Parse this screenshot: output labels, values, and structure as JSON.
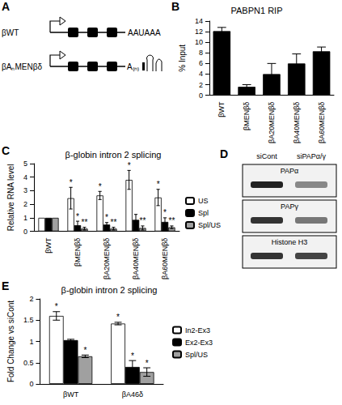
{
  "panel_labels": [
    "A",
    "B",
    "C",
    "D",
    "E"
  ],
  "diagram": {
    "constructs": [
      {
        "label": "βWT",
        "tail": "AAUAAA"
      },
      {
        "label": "βAₙMENβδ",
        "tail": "A₍ₙ₎"
      }
    ]
  },
  "blot": {
    "lanes": [
      "siCont",
      "siPAPα/γ"
    ],
    "rows": [
      "PAPα",
      "PAPγ",
      "Histone H3"
    ]
  },
  "chart_data": [
    {
      "type": "bar",
      "title": "PABPN1 RIP",
      "y_label": "% Input",
      "categories": [
        "βWT",
        "βMENβδ",
        "βA20MENβδ",
        "βA40MENβδ",
        "βA60MENβδ"
      ],
      "values": [
        12.1,
        1.6,
        4.0,
        6.0,
        8.3
      ],
      "errors": [
        0.7,
        0.4,
        2.0,
        1.8,
        0.8
      ],
      "color": "#000000",
      "ylim": [
        0,
        14
      ],
      "yticks": [
        0,
        2,
        4,
        6,
        8,
        10,
        12,
        14
      ],
      "grid": false
    },
    {
      "type": "bar",
      "title": "β-globin intron 2 splicing",
      "y_label": "Relative RNA level",
      "categories": [
        "βWT",
        "βMENβδ",
        "βA20MENβδ",
        "βA40MENβδ",
        "βA60MENβδ"
      ],
      "series": [
        {
          "name": "US",
          "color": "#ffffff",
          "values": [
            1,
            2.45,
            2.65,
            3.8,
            2.5
          ],
          "errors": [
            0,
            0.8,
            0.3,
            0.7,
            0.6
          ]
        },
        {
          "name": "Spl",
          "color": "#000000",
          "values": [
            1,
            0.45,
            0.5,
            0.85,
            0.7
          ],
          "errors": [
            0,
            0.3,
            0.15,
            0.4,
            0.3
          ]
        },
        {
          "name": "Spl/US",
          "color": "#a0a0a0",
          "values": [
            1,
            0.2,
            0.2,
            0.25,
            0.3
          ],
          "errors": [
            0,
            0.1,
            0.1,
            0.15,
            0.1
          ]
        }
      ],
      "annotations": [
        {
          "text": "*",
          "series": "US",
          "category": "βMENβδ"
        },
        {
          "text": "*",
          "series": "US",
          "category": "βA20MENβδ"
        },
        {
          "text": "*",
          "series": "US",
          "category": "βA40MENβδ"
        },
        {
          "text": "*",
          "series": "US",
          "category": "βA60MENβδ"
        },
        {
          "text": "*",
          "series": "Spl",
          "category": "βMENβδ"
        },
        {
          "text": "*",
          "series": "Spl",
          "category": "βA20MENβδ"
        },
        {
          "text": "*",
          "series": "Spl",
          "category": "βA60MENβδ"
        },
        {
          "text": "**",
          "series": "Spl/US",
          "category": "βMENβδ"
        },
        {
          "text": "**",
          "series": "Spl/US",
          "category": "βA20MENβδ"
        },
        {
          "text": "**",
          "series": "Spl/US",
          "category": "βA40MENβδ"
        },
        {
          "text": "**",
          "series": "Spl/US",
          "category": "βA60MENβδ"
        }
      ],
      "ylim": [
        0,
        5
      ],
      "yticks": [
        0,
        1,
        2,
        3,
        4,
        5
      ],
      "legend": "right",
      "grid": false
    },
    {
      "type": "bar",
      "title": "β-globin intron 2 splicing",
      "y_label": "Fold Change vs siCont",
      "categories": [
        "βWT",
        "βA46δ"
      ],
      "series": [
        {
          "name": "In2-Ex3",
          "color": "#ffffff",
          "values": [
            1.6,
            1.42
          ],
          "errors": [
            0.1,
            0.03
          ]
        },
        {
          "name": "Ex2-Ex3",
          "color": "#000000",
          "values": [
            1.03,
            0.4
          ],
          "errors": [
            0.02,
            0.15
          ]
        },
        {
          "name": "Spl/US",
          "color": "#a0a0a0",
          "values": [
            0.65,
            0.28
          ],
          "errors": [
            0.03,
            0.1
          ]
        }
      ],
      "annotations": [
        {
          "text": "*",
          "series": "In2-Ex3",
          "category": "βWT"
        },
        {
          "text": "*",
          "series": "In2-Ex3",
          "category": "βA46δ"
        },
        {
          "text": "*",
          "series": "Spl/US",
          "category": "βWT"
        },
        {
          "text": "*",
          "series": "Ex2-Ex3",
          "category": "βA46δ"
        },
        {
          "text": "*",
          "series": "Spl/US",
          "category": "βA46δ"
        }
      ],
      "ylim": [
        0,
        2
      ],
      "yticks": [
        0,
        0.5,
        1,
        1.5,
        2
      ],
      "legend": "right",
      "grid": false
    }
  ]
}
